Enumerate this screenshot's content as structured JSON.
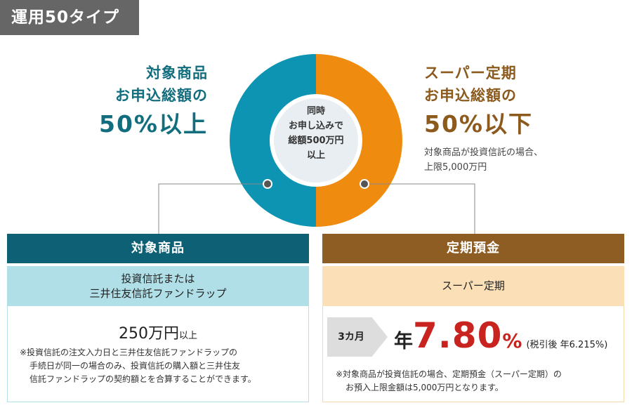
{
  "tag": "運用50タイプ",
  "left_heading": {
    "line1": "対象商品",
    "line2": "お申込総額の",
    "big": "50%以上"
  },
  "right_heading": {
    "line1": "スーパー定期",
    "line2": "お申込総額の",
    "big": "50%以下"
  },
  "right_note": {
    "line1": "対象商品が投資信託の場合、",
    "line2": "上限5,000万円"
  },
  "center": {
    "line1": "同時",
    "line2": "お申し込みで",
    "line3": "総額500万円",
    "line4": "以上"
  },
  "donut": {
    "left_share": 50,
    "right_share": 50
  },
  "colors": {
    "teal": "#0e94b3",
    "orange": "#ef8b0e",
    "teal_dark": "#0e6075",
    "brown": "#8e5d24",
    "red": "#c8231f"
  },
  "left_panel": {
    "header": "対象商品",
    "sub_line1": "投資信託または",
    "sub_line2": "三井住友信託ファンドラップ",
    "amount": "250万円",
    "amount_suffix": "以上",
    "note_line1": "※投資信託の注文入力日と三井住友信託ファンドラップの",
    "note_line2": "手続日が同一の場合のみ、投資信託の購入額と三井住友",
    "note_line3": "信託ファンドラップの契約額とを合算することができます。"
  },
  "right_panel": {
    "header": "定期預金",
    "sub": "スーパー定期",
    "term": "3カ月",
    "rate_prefix": "年",
    "rate": "7.80",
    "rate_unit": "%",
    "after_tax": "(税引後 年6.215%)",
    "note_line1": "※対象商品が投資信託の場合、定期預金（スーパー定期）の",
    "note_line2": "お預入上限金額は5,000万円となります。"
  }
}
